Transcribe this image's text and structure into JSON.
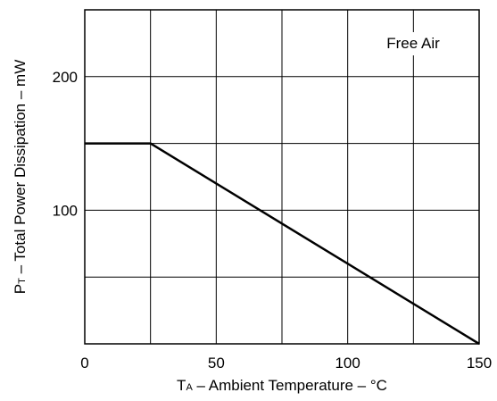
{
  "chart_data": {
    "type": "line",
    "xlabel": {
      "main": "T",
      "subscript": "A",
      "rest": " – Ambient Temperature – °C"
    },
    "ylabel": {
      "main": "P",
      "subscript": "T",
      "rest": " – Total Power Dissipation – mW"
    },
    "xlim": [
      0,
      150
    ],
    "ylim": [
      0,
      250
    ],
    "xticks": [
      0,
      50,
      100,
      150
    ],
    "yticks": [
      100,
      200
    ],
    "x_grid": [
      0,
      25,
      50,
      75,
      100,
      125,
      150
    ],
    "y_grid": [
      0,
      50,
      100,
      150,
      200,
      250
    ],
    "annotation": "Free Air",
    "grid": true,
    "series": [
      {
        "x": [
          0,
          25,
          150
        ],
        "y": [
          150,
          150,
          0
        ]
      }
    ],
    "colors": {
      "line": "#000000",
      "grid": "#000000",
      "background": "#ffffff"
    }
  }
}
